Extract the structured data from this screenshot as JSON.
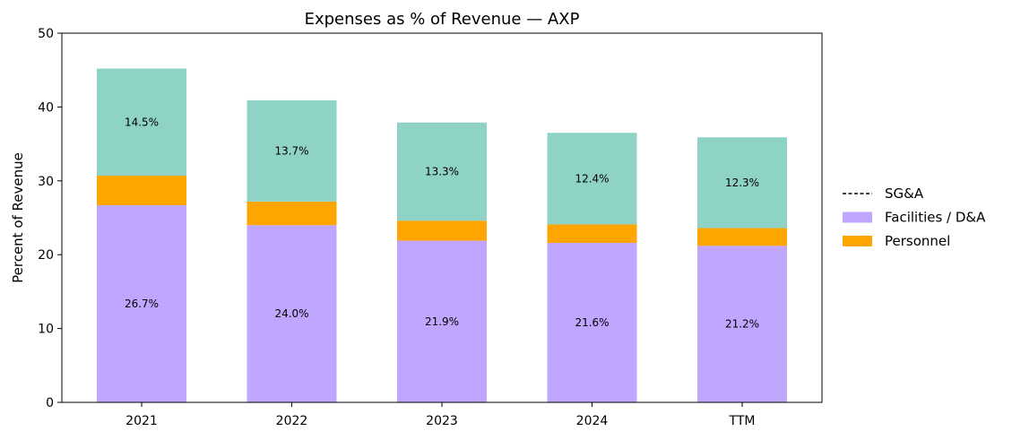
{
  "chart_data": {
    "type": "bar",
    "stacked": true,
    "title": "Expenses as % of Revenue — AXP",
    "xlabel": "",
    "ylabel": "Percent of Revenue",
    "ylim": [
      0,
      50
    ],
    "yticks": [
      0,
      10,
      20,
      30,
      40,
      50
    ],
    "categories": [
      "2021",
      "2022",
      "2023",
      "2024",
      "TTM"
    ],
    "series": [
      {
        "name": "Facilities / D&A",
        "color": "#c0a6ff",
        "values": [
          26.7,
          24.0,
          21.9,
          21.6,
          21.2
        ],
        "labels": [
          "26.7%",
          "24.0%",
          "21.9%",
          "21.6%",
          "21.2%"
        ]
      },
      {
        "name": "Personnel",
        "color": "#ffa500",
        "values": [
          4.0,
          3.2,
          2.7,
          2.5,
          2.4
        ],
        "labels": []
      },
      {
        "name": "",
        "color": "#8fd3c7",
        "values": [
          14.5,
          13.7,
          13.3,
          12.4,
          12.3
        ],
        "labels": [
          "14.5%",
          "13.7%",
          "13.3%",
          "12.4%",
          "12.3%"
        ]
      }
    ],
    "legend": {
      "placement": "right",
      "entries": [
        {
          "label": "SG&A",
          "style": "dashed-line",
          "color": "#000000"
        },
        {
          "label": "Facilities / D&A",
          "style": "patch",
          "color": "#c0a6ff"
        },
        {
          "label": "Personnel",
          "style": "patch",
          "color": "#ffa500"
        }
      ]
    },
    "grid": false
  }
}
